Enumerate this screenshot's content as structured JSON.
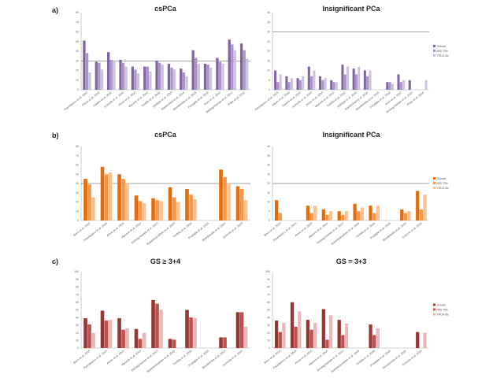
{
  "panels": [
    {
      "label": "a)"
    },
    {
      "label": "b)"
    },
    {
      "label": "c)"
    }
  ],
  "chart_data": [
    {
      "type": "bar",
      "title": "csPCa",
      "ylim": [
        0,
        80
      ],
      "yticks": [
        "0",
        "10",
        "20",
        "30",
        "40",
        "50",
        "60",
        "70",
        "80"
      ],
      "refline": 30,
      "categories": [
        "Panebianco et al. 2015",
        "Filson et al. 2016",
        "Salami et al. 2015",
        "Schoots et al. 2015",
        "Arsov et al. 2015",
        "Wysock et al. 2014",
        "Tonttila et al. 2016",
        "Siddiqui et al. 2015",
        "Rastinehad et al. 2014",
        "Mendhiratta et al. 2015",
        "Porpiglia et al. 2016",
        "Kuru et al. 2013",
        "Delongchamps et al. 2013",
        "Pepe et al. 2016"
      ],
      "legend": [
        "Overall",
        "MRI-TBx",
        "TRUS-Bx"
      ],
      "colors": [
        "#8064a2",
        "#a994c5",
        "#cfc2df"
      ],
      "series": [
        {
          "name": "Overall",
          "values": [
            51,
            29,
            39,
            31,
            24,
            24,
            30,
            27,
            22,
            41,
            27,
            33,
            52,
            48
          ]
        },
        {
          "name": "MRI-TBx",
          "values": [
            38,
            28,
            31,
            28,
            21,
            24,
            28,
            23,
            18,
            33,
            26,
            29,
            47,
            41
          ]
        },
        {
          "name": "TRUS-Bx",
          "values": [
            18,
            21,
            29,
            24,
            17,
            19,
            26,
            21,
            14,
            27,
            23,
            27,
            41,
            32
          ]
        }
      ]
    },
    {
      "type": "bar",
      "title": "Insignificant PCa",
      "ylim": [
        0,
        40
      ],
      "yticks": [
        "0",
        "5",
        "10",
        "15",
        "20",
        "25",
        "30",
        "35",
        "40"
      ],
      "refline": 30,
      "categories": [
        "Panebianco et al. 2015",
        "Filson et al. 2016",
        "Salami et al. 2015",
        "Schoots et al. 2015",
        "Arsov et al. 2015",
        "Wysock et al. 2014",
        "Tonttila et al. 2016",
        "Siddiqui et al. 2015",
        "Rastinehad et al. 2014",
        "Mendhiratta et al. 2015",
        "Porpiglia et al. 2016",
        "Kuru et al. 2013",
        "Delongchamps et al. 2013",
        "Pepe et al. 2016"
      ],
      "legend": [
        "Overall",
        "MRI-TBx",
        "TRUS-Bx"
      ],
      "colors": [
        "#8064a2",
        "#a994c5",
        "#cfc2df"
      ],
      "series": [
        {
          "name": "Overall",
          "values": [
            10,
            7,
            6,
            12,
            7,
            5,
            13,
            11,
            10,
            0,
            4,
            8,
            5,
            0
          ]
        },
        {
          "name": "MRI-TBx",
          "values": [
            4,
            4,
            5,
            7,
            5,
            4,
            8,
            8,
            7,
            0,
            4,
            4,
            0,
            0
          ]
        },
        {
          "name": "TRUS-Bx",
          "values": [
            8,
            6,
            7,
            10,
            6,
            4,
            12,
            12,
            10,
            0,
            3,
            5,
            0,
            5
          ]
        }
      ]
    },
    {
      "type": "bar",
      "title": "csPCa",
      "ylim": [
        0,
        80
      ],
      "yticks": [
        "0",
        "10",
        "20",
        "30",
        "40",
        "50",
        "60",
        "70",
        "80"
      ],
      "refline": 40,
      "categories": [
        "Baco et al. 2015",
        "Panebianco et al. 2015",
        "Arsov et al. 2015",
        "Wysock et al. 2014",
        "Delongchamps et al. 2013",
        "Kasivisvanathan et al. 2018",
        "Tonttila et al. 2016",
        "Porpiglia et al. 2016",
        "Mendhiratta et al. 2015",
        "Schoots et al. 2015"
      ],
      "legend": [
        "Overall",
        "MRI-TBx",
        "TRUS-Bx"
      ],
      "colors": [
        "#e46c0a",
        "#f79646",
        "#fac090"
      ],
      "series": [
        {
          "name": "Overall",
          "values": [
            45,
            58,
            50,
            27,
            24,
            36,
            34,
            0,
            55,
            37
          ]
        },
        {
          "name": "MRI-TBx",
          "values": [
            39,
            50,
            45,
            21,
            22,
            25,
            28,
            0,
            47,
            34
          ]
        },
        {
          "name": "TRUS-Bx",
          "values": [
            25,
            52,
            40,
            19,
            21,
            20,
            23,
            0,
            39,
            22
          ]
        }
      ]
    },
    {
      "type": "bar",
      "title": "Insignificant PCa",
      "ylim": [
        0,
        40
      ],
      "yticks": [
        "0",
        "5",
        "10",
        "15",
        "20",
        "25",
        "30",
        "35",
        "40"
      ],
      "refline": 20,
      "categories": [
        "Baco et al. 2015",
        "Panebianco et al. 2015",
        "Arsov et al. 2015",
        "Wysock et al. 2014",
        "Delongchamps et al. 2013",
        "Kasivisvanathan et al. 2018",
        "Tonttila et al. 2016",
        "Porpiglia et al. 2016",
        "Mendhiratta et al. 2015",
        "Schoots et al. 2015"
      ],
      "legend": [
        "Overall",
        "MRI-TBx",
        "TRUS-Bx"
      ],
      "colors": [
        "#e46c0a",
        "#f79646",
        "#fac090"
      ],
      "series": [
        {
          "name": "Overall",
          "values": [
            11,
            0,
            8,
            6,
            5,
            9,
            8,
            0,
            6,
            16
          ]
        },
        {
          "name": "MRI-TBx",
          "values": [
            4,
            0,
            4,
            3,
            3,
            5,
            4,
            0,
            4,
            6
          ]
        },
        {
          "name": "TRUS-Bx",
          "values": [
            0,
            0,
            8,
            5,
            5,
            7,
            8,
            0,
            5,
            14
          ]
        }
      ]
    },
    {
      "type": "bar",
      "title": "GS ≥ 3+4",
      "ylim": [
        0,
        100
      ],
      "yticks": [
        "0",
        "10",
        "20",
        "30",
        "40",
        "50",
        "60",
        "70",
        "80",
        "90",
        "100"
      ],
      "refline": null,
      "categories": [
        "Baco et al. 2015",
        "Panebianco et al. 2015",
        "Arsov et al. 2015",
        "Wysock et al. 2014",
        "Delongchamps et al. 2013",
        "Kasivisvanathan et al. 2018",
        "Tonttila et al. 2016",
        "Porpiglia et al. 2016",
        "Mendhiratta et al. 2015",
        "Schoots et al. 2015"
      ],
      "legend": [
        "Overall",
        "MRI-TBx",
        "TRUS-Bx"
      ],
      "colors": [
        "#953735",
        "#c0504d",
        "#e6b9b8"
      ],
      "series": [
        {
          "name": "Overall",
          "values": [
            39,
            49,
            39,
            25,
            63,
            12,
            50,
            0,
            14,
            47
          ]
        },
        {
          "name": "MRI-TBx",
          "values": [
            31,
            36,
            24,
            12,
            58,
            11,
            40,
            0,
            14,
            47
          ]
        },
        {
          "name": "TRUS-Bx",
          "values": [
            20,
            37,
            26,
            20,
            50,
            0,
            39,
            0,
            0,
            28
          ]
        }
      ]
    },
    {
      "type": "bar",
      "title": "GS = 3+3",
      "ylim": [
        0,
        100
      ],
      "yticks": [
        "0",
        "10",
        "20",
        "30",
        "40",
        "50",
        "60",
        "70",
        "80",
        "90",
        "100"
      ],
      "refline": null,
      "categories": [
        "Baco et al. 2015",
        "Panebianco et al. 2015",
        "Arsov et al. 2015",
        "Wysock et al. 2014",
        "Delongchamps et al. 2013",
        "Kasivisvanathan et al. 2018",
        "Tonttila et al. 2016",
        "Porpiglia et al. 2016",
        "Mendhiratta et al. 2015",
        "Schoots et al. 2015"
      ],
      "legend": [
        "Overall",
        "MRI-TBx",
        "TRUS-Bx"
      ],
      "colors": [
        "#953735",
        "#c0504d",
        "#e6b9b8"
      ],
      "series": [
        {
          "name": "Overall",
          "values": [
            36,
            60,
            37,
            51,
            37,
            0,
            31,
            0,
            0,
            21
          ]
        },
        {
          "name": "MRI-TBx",
          "values": [
            21,
            28,
            24,
            11,
            17,
            0,
            17,
            0,
            0,
            0
          ]
        },
        {
          "name": "TRUS-Bx",
          "values": [
            33,
            48,
            33,
            43,
            32,
            0,
            26,
            0,
            0,
            20
          ]
        }
      ]
    }
  ]
}
